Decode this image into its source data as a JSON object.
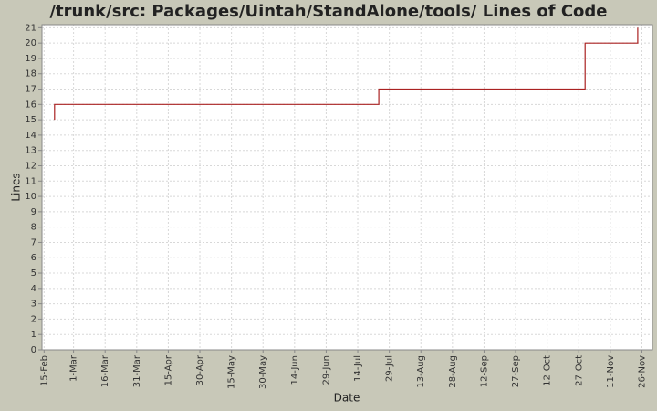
{
  "chart_data": {
    "type": "line",
    "title": "/trunk/src: Packages/Uintah/StandAlone/tools/ Lines of Code",
    "x_label": "Date",
    "y_label": "Lines",
    "series": [
      {
        "name": "Lines",
        "color": "#aa2222",
        "x": [
          "20-Feb",
          "20-Feb",
          "24-Jul",
          "24-Jul",
          "30-Oct",
          "30-Oct",
          "24-Nov",
          "24-Nov"
        ],
        "values": [
          15,
          16,
          16,
          17,
          17,
          20,
          20,
          21
        ]
      }
    ],
    "xlim": [
      "14-Feb",
      "1-Dec"
    ],
    "xticks": [
      "15-Feb",
      "1-Mar",
      "16-Mar",
      "31-Mar",
      "15-Apr",
      "30-Apr",
      "15-May",
      "30-May",
      "14-Jun",
      "29-Jun",
      "14-Jul",
      "29-Jul",
      "13-Aug",
      "28-Aug",
      "12-Sep",
      "27-Sep",
      "12-Oct",
      "27-Oct",
      "11-Nov",
      "26-Nov"
    ],
    "ylim": [
      0,
      21.2
    ],
    "yticks": [
      0,
      1,
      2,
      3,
      4,
      5,
      6,
      7,
      8,
      9,
      10,
      11,
      12,
      13,
      14,
      15,
      16,
      17,
      18,
      19,
      20,
      21
    ],
    "grid": true
  }
}
